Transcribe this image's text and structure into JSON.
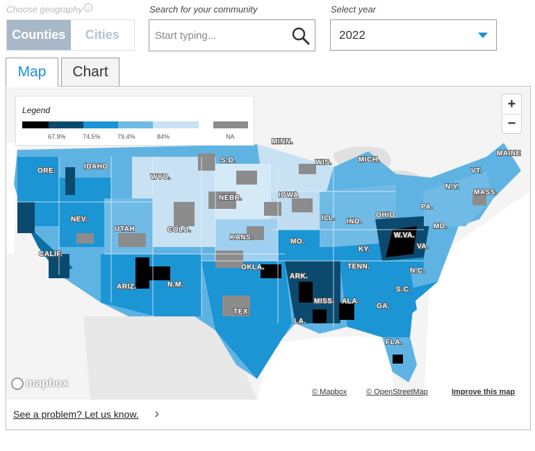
{
  "controls": {
    "geography_label": "Choose geography",
    "geography_options": [
      "Counties",
      "Cities"
    ],
    "geography_selected": "Counties",
    "search_label": "Search for your community",
    "search_placeholder": "Start typing...",
    "search_value": "",
    "year_label": "Select year",
    "year_value": "2022"
  },
  "tabs": [
    {
      "label": "Map",
      "active": true
    },
    {
      "label": "Chart",
      "active": false
    }
  ],
  "legend": {
    "title": "Legend",
    "breaks": [
      "67.9%",
      "74.5%",
      "79.4%",
      "84%"
    ],
    "na_label": "NA",
    "colors": [
      "#000000",
      "#0b4a6e",
      "#1b95d4",
      "#6fbbe6",
      "#c8e2f3"
    ],
    "na_color": "#8c8c8c"
  },
  "map": {
    "state_labels": [
      "MAINE",
      "N.Y.",
      "VT.",
      "MASS.",
      "PA.",
      "MD.",
      "VA.",
      "W.VA.",
      "OHIO",
      "IND.",
      "ILL.",
      "MICH.",
      "WIS.",
      "MINN.",
      "IOWA",
      "MO.",
      "KY.",
      "TENN.",
      "N.C.",
      "S.C.",
      "GA.",
      "FLA.",
      "ALA.",
      "MISS.",
      "LA.",
      "ARK.",
      "OKLA.",
      "TEX.",
      "N.M.",
      "ARIZ.",
      "COLO.",
      "KANS.",
      "NEBR.",
      "S.D.",
      "WYO.",
      "UTAH",
      "NEV.",
      "CALIF.",
      "ORE.",
      "IDAHO"
    ],
    "zoom_in": "+",
    "zoom_out": "−"
  },
  "attribution": {
    "logo": "mapbox",
    "mapbox": "© Mapbox",
    "osm": "© OpenStreetMap",
    "improve": "Improve this map"
  },
  "footer": {
    "problem_link": "See a problem? Let us know."
  }
}
